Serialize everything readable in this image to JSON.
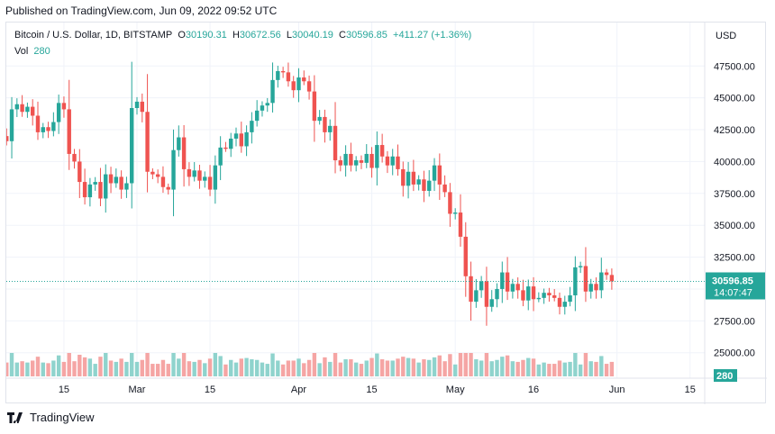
{
  "published": "Published on TradingView.com, Jun 09, 2022 09:52 UTC",
  "legend": {
    "symbol": "Bitcoin / U.S. Dollar, 1D, BITSTAMP",
    "o_label": "O",
    "o": "30190.31",
    "h_label": "H",
    "h": "30672.56",
    "l_label": "L",
    "l": "30040.19",
    "c_label": "C",
    "c": "30596.85",
    "change": "+411.27 (+1.36%)"
  },
  "volume": {
    "label": "Vol",
    "value": "280"
  },
  "footer": {
    "brand": "TradingView"
  },
  "colors": {
    "up": "#26a69a",
    "down": "#ef5350",
    "vol_up": "#8fd3cd",
    "vol_down": "#f5a5a4",
    "grid": "#f0f3fa",
    "axis_text": "#131722"
  },
  "chart_data": {
    "type": "candlestick",
    "currency_label": "USD",
    "y_ticks": [
      25000,
      27500,
      30000,
      32500,
      35000,
      37500,
      40000,
      42500,
      45000,
      47500
    ],
    "y_tick_labels": [
      "25000.00",
      "27500.00",
      "30000.00",
      "32500.00",
      "35000.00",
      "37500.00",
      "40000.00",
      "42500.00",
      "45000.00",
      "47500.00"
    ],
    "ylim": [
      23000,
      49500
    ],
    "x_ticks": [
      {
        "label": "15",
        "date": "2022-02-15"
      },
      {
        "label": "Mar",
        "date": "2022-03-01"
      },
      {
        "label": "15",
        "date": "2022-03-15"
      },
      {
        "label": "Apr",
        "date": "2022-04-01"
      },
      {
        "label": "15",
        "date": "2022-04-15"
      },
      {
        "label": "May",
        "date": "2022-05-01"
      },
      {
        "label": "16",
        "date": "2022-05-16"
      },
      {
        "label": "Jun",
        "date": "2022-06-01"
      },
      {
        "label": "15",
        "date": "2022-06-15"
      }
    ],
    "last_price": {
      "value": 30596.85,
      "label": "30596.85",
      "countdown": "14:07:47"
    },
    "volume_label": "280",
    "start_date": "2022-02-02",
    "closes": [
      41400,
      42000,
      41600,
      44100,
      44500,
      43900,
      44300,
      43600,
      42300,
      42700,
      42400,
      43100,
      44600,
      44100,
      40600,
      40000,
      38400,
      37200,
      38200,
      38400,
      37100,
      39000,
      38300,
      38800,
      37800,
      38300,
      44200,
      44700,
      43900,
      39200,
      39000,
      38800,
      38000,
      37800,
      40900,
      41900,
      39400,
      38800,
      39300,
      38500,
      38800,
      37800,
      39700,
      41100,
      41000,
      41800,
      42200,
      41200,
      42300,
      43200,
      44000,
      44400,
      44600,
      46400,
      47100,
      47000,
      46300,
      45600,
      46600,
      46300,
      45500,
      43200,
      43500,
      42300,
      42800,
      40100,
      39700,
      40600,
      39700,
      40100,
      39900,
      40600,
      39500,
      41300,
      40400,
      39700,
      40400,
      39400,
      38100,
      39200,
      38200,
      38600,
      37700,
      38500,
      39700,
      38200,
      37600,
      35900,
      36000,
      34100,
      31000,
      29000,
      29900,
      30600,
      28600,
      29200,
      30000,
      31300,
      29800,
      30400,
      29900,
      29100,
      30200,
      29200,
      29300,
      29700,
      29500,
      29300,
      28600,
      29000,
      29500,
      31700,
      31800,
      29800,
      30400,
      29900,
      31300,
      31100,
      30600
    ]
  }
}
